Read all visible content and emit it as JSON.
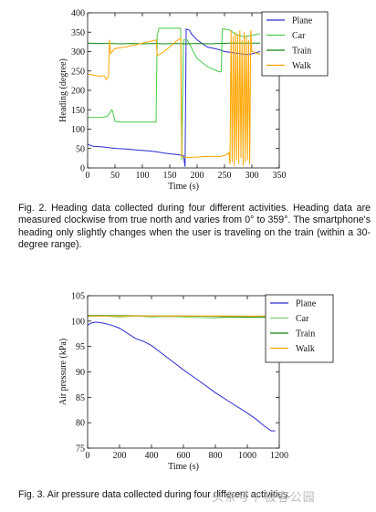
{
  "fig2": {
    "caption": "Fig. 2. Heading data collected during four different activities. Heading data are measured clockwise from true north and varies from 0° to 359°. The smartphone's heading only slightly changes when the user is traveling on the train (within a 30-degree range).",
    "chart_data": {
      "type": "line",
      "title": "",
      "xlabel": "Time (s)",
      "ylabel": "Heading (degree)",
      "xlim": [
        0,
        350
      ],
      "ylim": [
        0,
        400
      ],
      "xticks": [
        "0",
        "50",
        "100",
        "150",
        "200",
        "250",
        "300",
        "350"
      ],
      "yticks": [
        "0",
        "50",
        "100",
        "150",
        "200",
        "250",
        "300",
        "350",
        "400"
      ],
      "legend": "top-right",
      "grid": false,
      "series": [
        {
          "name": "Plane",
          "color": "#2b2bd0",
          "x": [
            0,
            5,
            10,
            20,
            30,
            40,
            55,
            70,
            90,
            110,
            125,
            140,
            160,
            175,
            178,
            180,
            186,
            190,
            200,
            218,
            240,
            250,
            260,
            270,
            280,
            290,
            300,
            315
          ],
          "y": [
            62,
            58,
            56,
            55,
            54,
            52,
            50,
            49,
            46,
            44,
            42,
            38,
            35,
            32,
            3,
            358,
            355,
            345,
            330,
            312,
            305,
            300,
            298,
            296,
            294,
            292,
            294,
            300
          ]
        },
        {
          "name": "Car",
          "color": "#44cc44",
          "segments": [
            {
              "x": [
                0,
                10,
                20,
                30,
                36,
                40,
                44,
                46,
                50,
                60,
                90,
                125,
                127,
                130,
                150,
                170,
                172,
                175,
                182,
                200,
                220,
                240,
                244,
                246,
                250,
                260,
                270,
                285,
                300,
                315
              ],
              "y": [
                130,
                130,
                130,
                131,
                133,
                140,
                150,
                145,
                120,
                118,
                118,
                118,
                340,
                360,
                360,
                360,
                20,
                330,
                330,
                282,
                260,
                248,
                248,
                358,
                358,
                355,
                345,
                338,
                342,
                346
              ]
            }
          ]
        },
        {
          "name": "Train",
          "color": "#118811",
          "x": [
            0,
            20,
            40,
            60,
            80,
            100,
            120,
            140,
            160,
            180,
            200,
            220,
            240,
            260,
            280,
            300,
            315
          ],
          "y": [
            322,
            321,
            321,
            320,
            321,
            320,
            321,
            320,
            321,
            320,
            321,
            320,
            321,
            322,
            322,
            322,
            322
          ]
        },
        {
          "name": "Walk",
          "color": "#ffa500",
          "x": [
            0,
            10,
            20,
            30,
            34,
            38,
            40,
            42,
            45,
            50,
            70,
            90,
            110,
            120,
            125,
            127,
            130,
            140,
            150,
            160,
            165,
            170,
            172,
            175,
            185,
            200,
            220,
            240,
            250,
            255,
            258,
            260,
            262,
            264,
            266,
            268,
            270,
            272,
            274,
            276,
            278,
            280,
            282,
            284,
            286,
            288,
            290,
            292,
            294,
            296,
            298,
            300,
            305,
            310,
            315
          ],
          "y": [
            242,
            240,
            236,
            238,
            228,
            235,
            330,
            295,
            300,
            308,
            312,
            318,
            325,
            328,
            330,
            290,
            292,
            300,
            312,
            325,
            330,
            335,
            30,
            28,
            27,
            28,
            30,
            29,
            32,
            35,
            40,
            10,
            355,
            15,
            340,
            5,
            350,
            20,
            345,
            10,
            355,
            25,
            330,
            5,
            350,
            15,
            340,
            20,
            330,
            10,
            355,
            300,
            298,
            295,
            293
          ]
        }
      ]
    }
  },
  "fig3": {
    "caption": "Fig. 3. Air pressure data collected during four different activities.",
    "chart_data": {
      "type": "line",
      "title": "",
      "xlabel": "Time (s)",
      "ylabel": "Air pressure (kPa)",
      "xlim": [
        0,
        1200
      ],
      "ylim": [
        75,
        105
      ],
      "xticks": [
        "0",
        "200",
        "400",
        "600",
        "800",
        "1000",
        "1200"
      ],
      "yticks": [
        "75",
        "80",
        "85",
        "90",
        "95",
        "100",
        "105"
      ],
      "legend": "top-right",
      "grid": false,
      "series": [
        {
          "name": "Plane",
          "color": "#2b2bd0",
          "x": [
            0,
            20,
            50,
            100,
            150,
            200,
            300,
            350,
            400,
            500,
            600,
            700,
            800,
            900,
            1000,
            1050,
            1100,
            1140,
            1150,
            1175
          ],
          "y": [
            99.2,
            99.6,
            99.8,
            99.6,
            99.2,
            98.6,
            96.6,
            96.0,
            95.2,
            92.8,
            90.4,
            88.2,
            85.9,
            83.9,
            81.9,
            80.8,
            79.5,
            78.6,
            78.4,
            78.4
          ]
        },
        {
          "name": "Car",
          "color": "#7cd26d",
          "x": [
            0,
            100,
            200,
            300,
            400,
            500,
            600,
            700,
            800,
            900,
            1000,
            1100,
            1200
          ],
          "y": [
            100.9,
            101.0,
            100.8,
            101.0,
            100.8,
            100.9,
            100.8,
            100.7,
            100.6,
            100.8,
            100.7,
            100.8,
            100.7
          ]
        },
        {
          "name": "Train",
          "color": "#118811",
          "x": [
            0,
            200,
            400,
            600,
            800,
            1000,
            1200
          ],
          "y": [
            101.1,
            101.1,
            101.0,
            101.0,
            100.9,
            100.8,
            100.8
          ]
        },
        {
          "name": "Walk",
          "color": "#ffa500",
          "x": [
            0,
            200,
            400,
            600,
            800,
            1000,
            1200
          ],
          "y": [
            101.0,
            101.0,
            101.0,
            101.0,
            101.0,
            101.0,
            101.0
          ]
        }
      ]
    }
  },
  "watermark": "头条号 / 极客公园"
}
